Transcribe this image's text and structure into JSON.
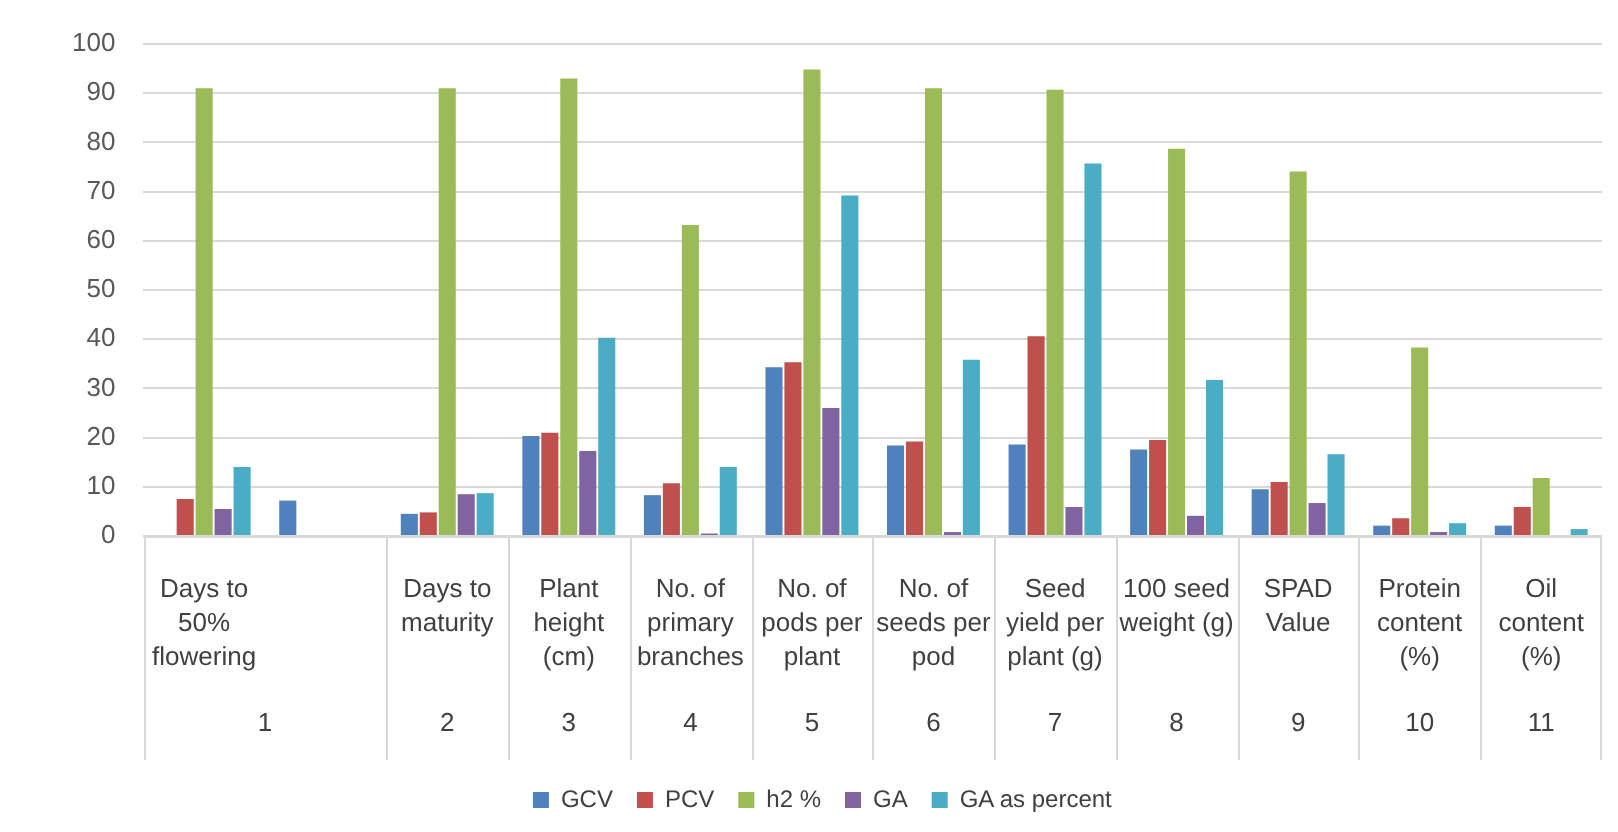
{
  "chart_data": {
    "type": "bar",
    "categories": [
      "Days to 50% flowering",
      null,
      "Days to maturity",
      "Plant height (cm)",
      "No. of primary branches",
      "No. of pods per plant",
      "No. of seeds per pod",
      "Seed yield per plant (g)",
      "100 seed weight (g)",
      "SPAD Value",
      "Protein content (%)",
      "Oil content (%)"
    ],
    "series": [
      {
        "name": "GCV",
        "color": "#4f81bd",
        "values": [
          null,
          7.2,
          4.5,
          20.3,
          8.3,
          34.3,
          18.4,
          18.6,
          17.6,
          9.5,
          2.1,
          2.1
        ]
      },
      {
        "name": "PCV",
        "color": "#c0504d",
        "values": [
          7.5,
          null,
          4.8,
          21,
          10.7,
          35.3,
          19.2,
          40.6,
          19.5,
          11,
          3.6,
          5.9
        ]
      },
      {
        "name": "h2 %",
        "color": "#9bbb59",
        "values": [
          91,
          null,
          91,
          93,
          63.2,
          94.8,
          91,
          90.7,
          78.7,
          74.1,
          38.3,
          11.8
        ]
      },
      {
        "name": "GA",
        "color": "#8064a2",
        "values": [
          5.5,
          null,
          8.5,
          17.3,
          0.5,
          26,
          0.8,
          5.9,
          4.1,
          6.7,
          0.8,
          null
        ]
      },
      {
        "name": "GA as percent",
        "color": "#4bacc6",
        "values": [
          14,
          null,
          8.7,
          40.3,
          14,
          69.2,
          35.8,
          75.7,
          31.7,
          16.6,
          2.6,
          1.4
        ]
      }
    ],
    "annotations": [
      "1",
      "2",
      "3",
      "4",
      "5",
      "6",
      "7",
      "8",
      "9",
      "10",
      "11"
    ],
    "ylim": [
      0,
      100
    ],
    "yticks": [
      0,
      10,
      20,
      30,
      40,
      50,
      60,
      70,
      80,
      90,
      100
    ],
    "grid": "y",
    "legend": "bottom"
  }
}
